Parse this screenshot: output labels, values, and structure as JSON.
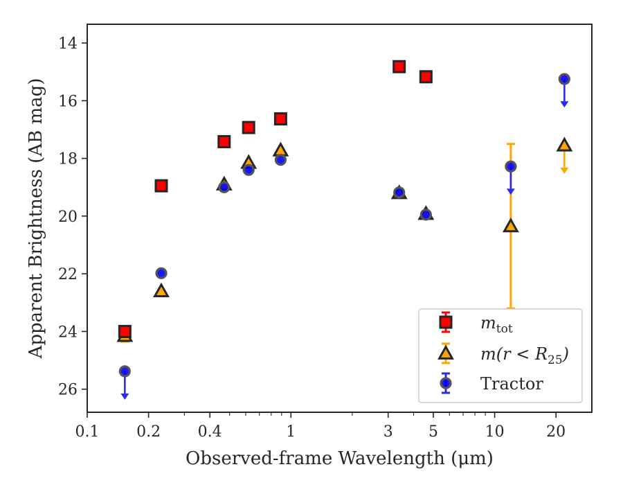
{
  "chart_data": {
    "type": "scatter",
    "xlabel": "Observed-frame Wavelength (μm)",
    "ylabel": "Apparent Brightness (AB mag)",
    "xscale": "log",
    "yaxis_inverted": true,
    "xlim": [
      0.1,
      30
    ],
    "ylim": [
      26.8,
      13.35
    ],
    "xticks": [
      {
        "value": 0.1,
        "label": "0.1"
      },
      {
        "value": 0.2,
        "label": "0.2"
      },
      {
        "value": 0.4,
        "label": "0.4"
      },
      {
        "value": 1,
        "label": "1"
      },
      {
        "value": 3,
        "label": "3"
      },
      {
        "value": 5,
        "label": "5"
      },
      {
        "value": 10,
        "label": "10"
      },
      {
        "value": 20,
        "label": "20"
      }
    ],
    "yticks": [
      {
        "value": 14,
        "label": "14"
      },
      {
        "value": 16,
        "label": "16"
      },
      {
        "value": 18,
        "label": "18"
      },
      {
        "value": 20,
        "label": "20"
      },
      {
        "value": 22,
        "label": "22"
      },
      {
        "value": 24,
        "label": "24"
      },
      {
        "value": 26,
        "label": "26"
      }
    ],
    "grid": false,
    "legend_position": "bottom-right",
    "series": [
      {
        "name": "m_tot",
        "label_main": "m",
        "label_sub": "tot",
        "marker": "square",
        "color": "#ff0000",
        "edge_color": "#262626",
        "points": [
          {
            "x": 0.153,
            "y": 24.0,
            "yerr": 0.15
          },
          {
            "x": 0.231,
            "y": 18.95
          },
          {
            "x": 0.47,
            "y": 17.42
          },
          {
            "x": 0.62,
            "y": 16.93
          },
          {
            "x": 0.89,
            "y": 16.63
          },
          {
            "x": 3.4,
            "y": 14.82
          },
          {
            "x": 4.6,
            "y": 15.17
          }
        ]
      },
      {
        "name": "m(r<R25)",
        "label_main": "m(r < R",
        "label_sub": "25",
        "label_end": ")",
        "marker": "triangle",
        "color": "#ffa500",
        "edge_color": "#262626",
        "points": [
          {
            "x": 0.153,
            "y": 24.15,
            "yerr": 0.2
          },
          {
            "x": 0.231,
            "y": 22.6
          },
          {
            "x": 0.47,
            "y": 18.9
          },
          {
            "x": 0.62,
            "y": 18.15
          },
          {
            "x": 0.89,
            "y": 17.72
          },
          {
            "x": 3.4,
            "y": 19.2
          },
          {
            "x": 4.6,
            "y": 19.92
          },
          {
            "x": 12,
            "y": 20.35,
            "yerr_low": 2.85,
            "yerr_high": 2.85
          },
          {
            "x": 22,
            "y": 17.55,
            "upper_limit": true
          }
        ]
      },
      {
        "name": "Tractor",
        "marker": "circle",
        "color": "#0000ff",
        "edge_color": "#555555",
        "points": [
          {
            "x": 0.153,
            "y": 25.38,
            "upper_limit": true
          },
          {
            "x": 0.231,
            "y": 21.98
          },
          {
            "x": 0.47,
            "y": 19.0
          },
          {
            "x": 0.62,
            "y": 18.4
          },
          {
            "x": 0.89,
            "y": 18.05
          },
          {
            "x": 3.4,
            "y": 19.18
          },
          {
            "x": 4.6,
            "y": 19.95
          },
          {
            "x": 12,
            "y": 18.28,
            "upper_limit": true
          },
          {
            "x": 22,
            "y": 15.25,
            "upper_limit": true
          }
        ]
      }
    ]
  }
}
